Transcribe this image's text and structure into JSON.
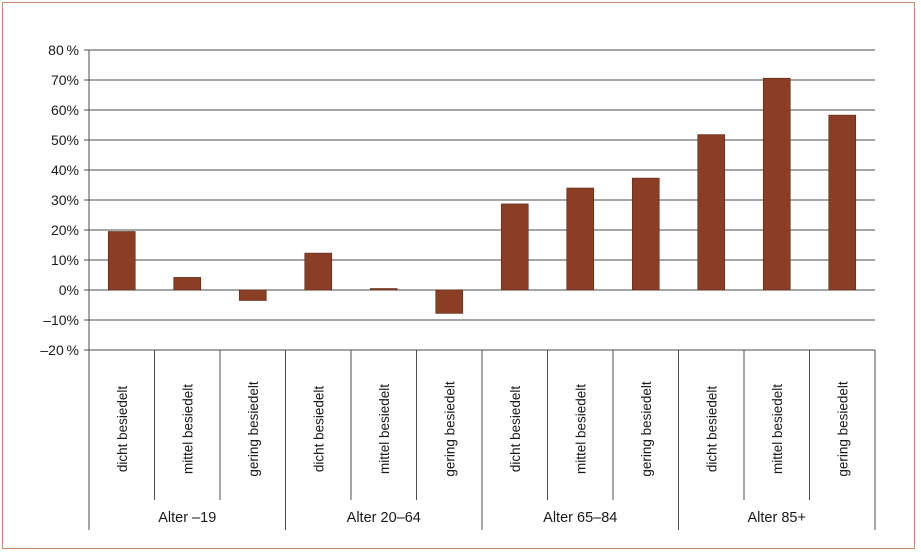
{
  "chart_data": {
    "type": "bar",
    "groups": [
      {
        "label": "Alter –19",
        "categories": [
          "dicht besiedelt",
          "mittel besiedelt",
          "gering besiedelt"
        ],
        "values": [
          19.5,
          4.2,
          -3.5
        ]
      },
      {
        "label": "Alter 20–64",
        "categories": [
          "dicht besiedelt",
          "mittel besiedelt",
          "gering besiedelt"
        ],
        "values": [
          12.3,
          0.5,
          -7.8
        ]
      },
      {
        "label": "Alter 65–84",
        "categories": [
          "dicht besiedelt",
          "mittel besiedelt",
          "gering besiedelt"
        ],
        "values": [
          28.7,
          34.0,
          37.3
        ]
      },
      {
        "label": "Alter 85+",
        "categories": [
          "dicht besiedelt",
          "mittel besiedelt",
          "gering besiedelt"
        ],
        "values": [
          51.8,
          70.6,
          58.3
        ]
      }
    ],
    "yticks": [
      "80 %",
      "70%",
      "60%",
      "50%",
      "40%",
      "30%",
      "20%",
      "10%",
      "0%",
      "–10%",
      "–20 %"
    ],
    "ylim": [
      -20,
      80
    ],
    "grid": true,
    "bar_color": "#8b3e26"
  }
}
